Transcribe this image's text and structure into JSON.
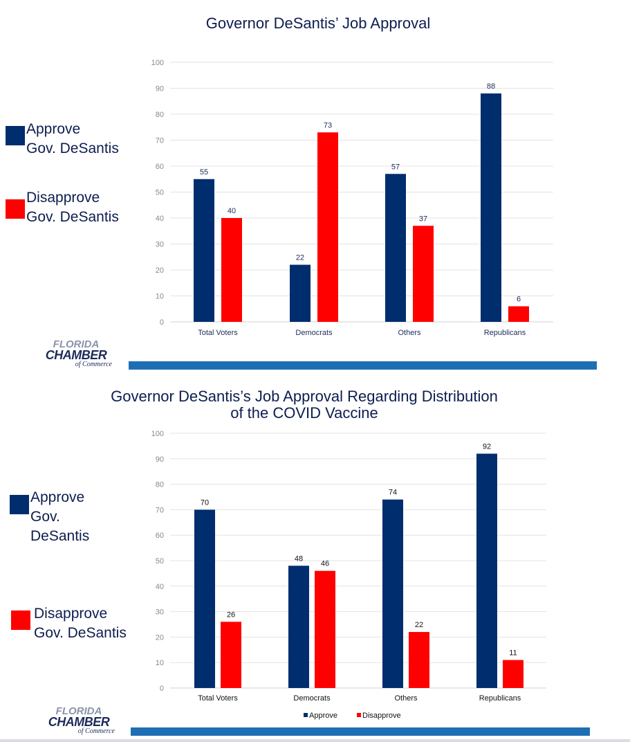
{
  "charts": [
    {
      "title": "Governor DeSantis’ Job Approval",
      "legend": [
        {
          "label": "Approve Gov. DeSantis",
          "lines": [
            "Approve",
            "Gov. DeSantis"
          ],
          "color": "#002d6e"
        },
        {
          "label": "Disapprove Gov. DeSantis",
          "lines": [
            "Disapprove",
            "Gov. DeSantis"
          ],
          "color": "#ff0000"
        }
      ]
    },
    {
      "title_lines": [
        "Governor DeSantis’s Job Approval Regarding Distribution",
        "of the COVID Vaccine"
      ],
      "legend": [
        {
          "label": "Approve Gov. DeSantis",
          "lines": [
            "Approve",
            "Gov.",
            "DeSantis"
          ],
          "color": "#002d6e"
        },
        {
          "label": "Disapprove Gov. DeSantis",
          "lines": [
            "Disapprove",
            "Gov. DeSantis"
          ],
          "color": "#ff0000"
        }
      ],
      "bottom_legend": [
        "Approve",
        "Disapprove"
      ]
    }
  ],
  "logo": {
    "line1": "FLORIDA",
    "line2": "CHAMBER",
    "line3": "of Commerce"
  },
  "colors": {
    "approve": "#002d6e",
    "disapprove": "#ff0000",
    "footer_bar": "#1e6eb4",
    "title": "#0d1d4f"
  },
  "chart_data": [
    {
      "type": "bar",
      "title": "Governor DeSantis’ Job Approval",
      "categories": [
        "Total Voters",
        "Democrats",
        "Others",
        "Republicans"
      ],
      "series": [
        {
          "name": "Approve Gov. DeSantis",
          "values": [
            55,
            22,
            57,
            88
          ],
          "color": "#002d6e"
        },
        {
          "name": "Disapprove Gov. DeSantis",
          "values": [
            40,
            73,
            37,
            6
          ],
          "color": "#ff0000"
        }
      ],
      "yticks": [
        0,
        10,
        20,
        30,
        40,
        50,
        60,
        70,
        80,
        90,
        100
      ],
      "ylim": [
        0,
        100
      ],
      "grid": true
    },
    {
      "type": "bar",
      "title": "Governor DeSantis’s Job Approval Regarding Distribution of the COVID Vaccine",
      "categories": [
        "Total Voters",
        "Democrats",
        "Others",
        "Republicans"
      ],
      "series": [
        {
          "name": "Approve",
          "values": [
            70,
            48,
            74,
            92
          ],
          "color": "#002d6e"
        },
        {
          "name": "Disapprove",
          "values": [
            26,
            46,
            22,
            11
          ],
          "color": "#ff0000"
        }
      ],
      "yticks": [
        0,
        10,
        20,
        30,
        40,
        50,
        60,
        70,
        80,
        90,
        100
      ],
      "ylim": [
        0,
        100
      ],
      "grid": true,
      "legend_position": "bottom"
    }
  ]
}
